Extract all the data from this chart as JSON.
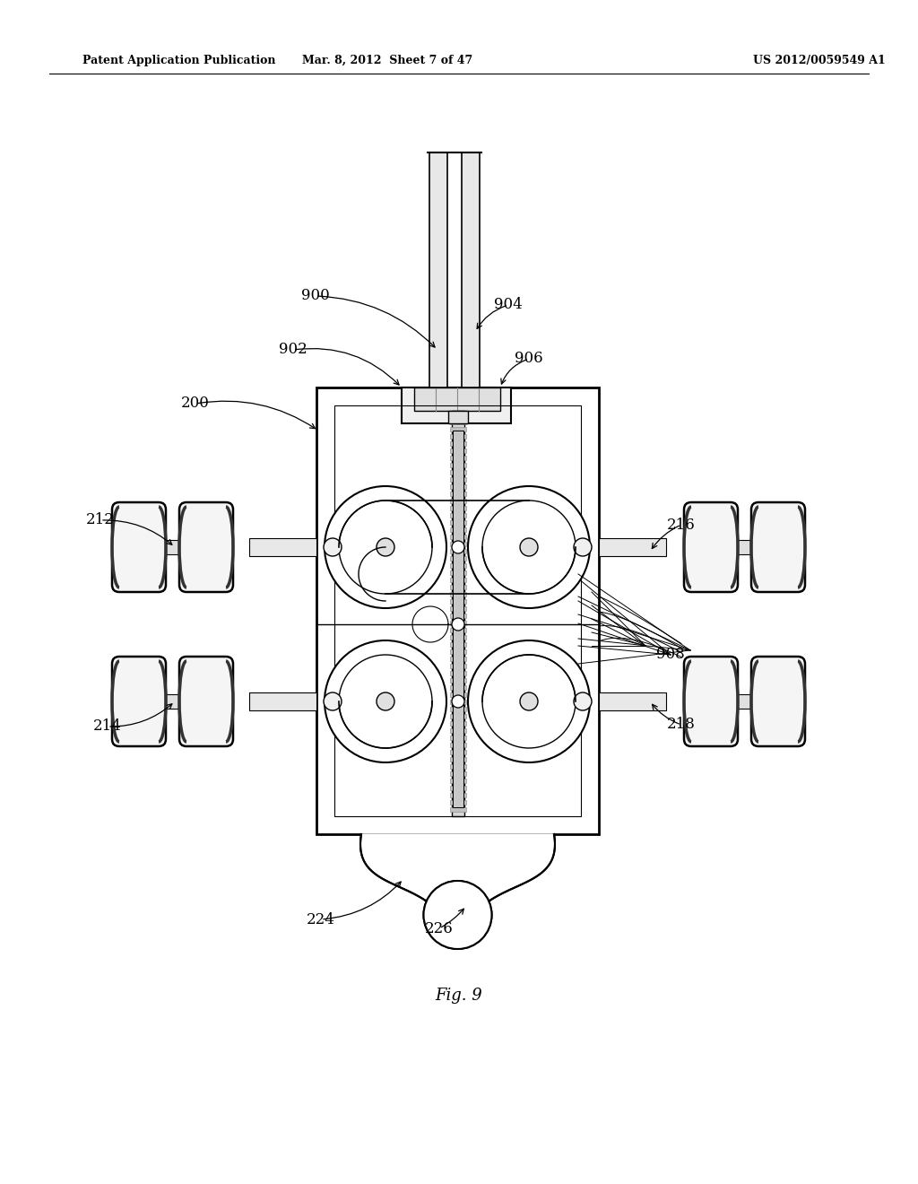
{
  "header_left": "Patent Application Publication",
  "header_mid": "Mar. 8, 2012  Sheet 7 of 47",
  "header_right": "US 2012/0059549 A1",
  "background_color": "#ffffff",
  "line_color": "#000000",
  "fig_label": "Fig. 9"
}
